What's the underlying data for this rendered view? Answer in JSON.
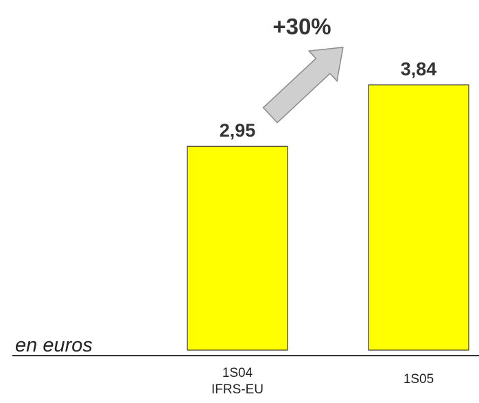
{
  "chart_data": {
    "type": "bar",
    "categories": [
      "1S04\nIFRS-EU",
      "1S05"
    ],
    "values": [
      2.95,
      3.84
    ],
    "value_labels": [
      "2,95",
      "3,84"
    ],
    "color": "#ffff00",
    "annotations": [
      "+30%",
      "en euros"
    ]
  }
}
